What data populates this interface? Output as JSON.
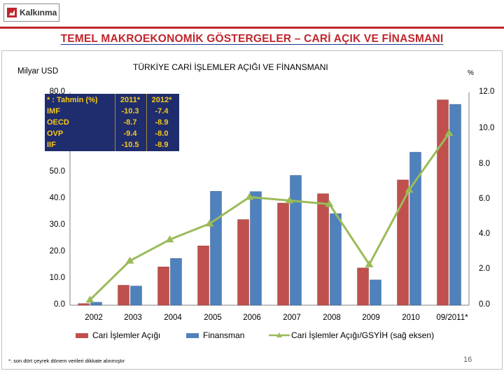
{
  "header": {
    "logo_text": "Kalkınma",
    "slide_title": "TEMEL MAKROEKONOMİK GÖSTERGELER – CARİ AÇIK VE FİNASMANI"
  },
  "colors": {
    "accent_red": "#c0262d",
    "bar_current_account": "#c0504d",
    "bar_financing": "#4f81bd",
    "line_ratio": "#9bbb59",
    "inset_bg": "#1f2d6e",
    "inset_text": "#f7c919"
  },
  "chart_data": {
    "type": "bar",
    "title": "TÜRKİYE CARİ İŞLEMLER AÇIĞI VE FİNANSMANI",
    "ylabel": "Milyar USD",
    "y2label": "%",
    "categories": [
      "2002",
      "2003",
      "2004",
      "2005",
      "2006",
      "2007",
      "2008",
      "2009",
      "2010",
      "09/2011*"
    ],
    "ylim": [
      0,
      80
    ],
    "y2lim": [
      0,
      12
    ],
    "yticks": [
      "0.0",
      "10.0",
      "20.0",
      "30.0",
      "40.0",
      "50.0",
      "80.0"
    ],
    "y2ticks": [
      "0.0",
      "2.0",
      "4.0",
      "6.0",
      "8.0",
      "10.0",
      "12.0"
    ],
    "series": [
      {
        "name": "Cari İşlemler Açığı",
        "type": "bar",
        "axis": "left",
        "values": [
          0.6,
          7.5,
          14.4,
          22.3,
          32.2,
          38.4,
          41.9,
          14.0,
          47.1,
          77.2
        ]
      },
      {
        "name": "Finansman",
        "type": "bar",
        "axis": "left",
        "values": [
          1.1,
          7.2,
          17.6,
          42.8,
          42.7,
          48.8,
          34.4,
          9.5,
          57.5,
          75.5
        ]
      },
      {
        "name": "Cari İşlemler Açığı/GSYİH (sağ eksen)",
        "type": "line",
        "axis": "right",
        "values": [
          0.3,
          2.5,
          3.7,
          4.6,
          6.1,
          5.9,
          5.7,
          2.3,
          6.5,
          9.7
        ]
      }
    ],
    "legend_position": "bottom",
    "grid": false,
    "inset_table": {
      "headers": [
        "* : Tahmin (%)",
        "2011*",
        "2012*"
      ],
      "rows": [
        [
          "IMF",
          "-10.3",
          "-7.4"
        ],
        [
          "OECD",
          "-8.7",
          "-8.9"
        ],
        [
          "OVP",
          "-9.4",
          "-8.0"
        ],
        [
          "IIF",
          "-10.5",
          "-8.9"
        ]
      ]
    }
  },
  "footer": {
    "footnote": "*: son dört çeyrek dönem verileri dikkate alınmıştır",
    "page_number": "16"
  }
}
